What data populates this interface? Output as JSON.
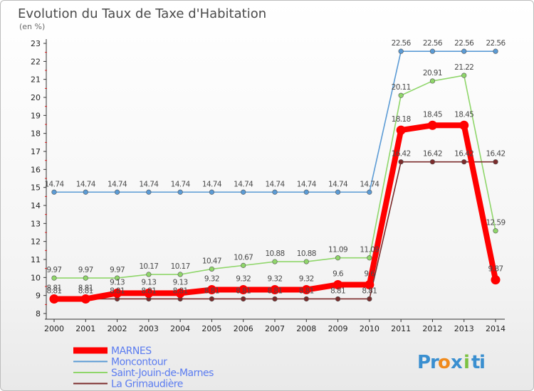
{
  "chart_data": {
    "type": "line",
    "title": "Evolution du Taux de Taxe d'Habitation",
    "subtitle": "(en %)",
    "xlabel": "",
    "ylabel": "",
    "x": [
      "2000",
      "2001",
      "2002",
      "2003",
      "2004",
      "2005",
      "2006",
      "2007",
      "2008",
      "2009",
      "2010",
      "2011",
      "2012",
      "2013",
      "2014"
    ],
    "ylim": [
      8,
      23
    ],
    "yticks": [
      8,
      9,
      10,
      11,
      12,
      13,
      14,
      15,
      16,
      17,
      18,
      19,
      20,
      21,
      22,
      23
    ],
    "grid": false,
    "legend_position": "bottom-left",
    "series": [
      {
        "name": "MARNES",
        "color": "#ff0000",
        "values": [
          8.81,
          8.81,
          9.13,
          9.13,
          9.13,
          9.32,
          9.32,
          9.32,
          9.32,
          9.6,
          9.6,
          18.18,
          18.45,
          18.45,
          9.87
        ],
        "labels": [
          "8.81",
          "8.81",
          "9.13",
          "9.13",
          "9.13",
          "9.32",
          "9.32",
          "9.32",
          "9.32",
          "9.6",
          "9.6",
          "18.18",
          "18.45",
          "18.45",
          "9.87"
        ]
      },
      {
        "name": "Moncontour",
        "color": "#5b9bd5",
        "values": [
          14.74,
          14.74,
          14.74,
          14.74,
          14.74,
          14.74,
          14.74,
          14.74,
          14.74,
          14.74,
          14.74,
          22.56,
          22.56,
          22.56,
          22.56
        ],
        "labels": [
          "14.74",
          "14.74",
          "14.74",
          "14.74",
          "14.74",
          "14.74",
          "14.74",
          "14.74",
          "14.74",
          "14.74",
          "14.74",
          "22.56",
          "22.56",
          "22.56",
          "22.56"
        ]
      },
      {
        "name": "Saint-Jouin-de-Marnes",
        "color": "#8fd66a",
        "values": [
          9.97,
          9.97,
          9.97,
          10.17,
          10.17,
          10.47,
          10.67,
          10.88,
          10.88,
          11.09,
          11.09,
          20.11,
          20.91,
          21.22,
          12.59
        ],
        "labels": [
          "9.97",
          "9.97",
          "9.97",
          "10.17",
          "10.17",
          "10.47",
          "10.67",
          "10.88",
          "10.88",
          "11.09",
          "11.09",
          "20.11",
          "20.91",
          "21.22",
          "12.59"
        ]
      },
      {
        "name": "La Grimaudière",
        "color": "#7b2b2b",
        "values": [
          8.81,
          8.81,
          8.81,
          8.81,
          8.81,
          8.81,
          8.81,
          8.81,
          8.81,
          8.81,
          8.81,
          16.42,
          16.42,
          16.42,
          16.42
        ],
        "labels": [
          "8.81",
          "8.81",
          "8.81",
          "8.81",
          "8.81",
          "8.81",
          "8.81",
          "8.81",
          "8.81",
          "8.81",
          "8.81",
          "16.42",
          "16.42",
          "16.42",
          "16.42"
        ]
      }
    ]
  },
  "logo": {
    "text": "Proxiti",
    "letters": [
      "P",
      "r",
      "o",
      "x",
      "i",
      "t",
      "i"
    ],
    "colors": [
      "#3a8fd0",
      "#3a8fd0",
      "#f08a1c",
      "#3a8fd0",
      "#7cc242",
      "#3a8fd0",
      "#3a8fd0"
    ]
  }
}
